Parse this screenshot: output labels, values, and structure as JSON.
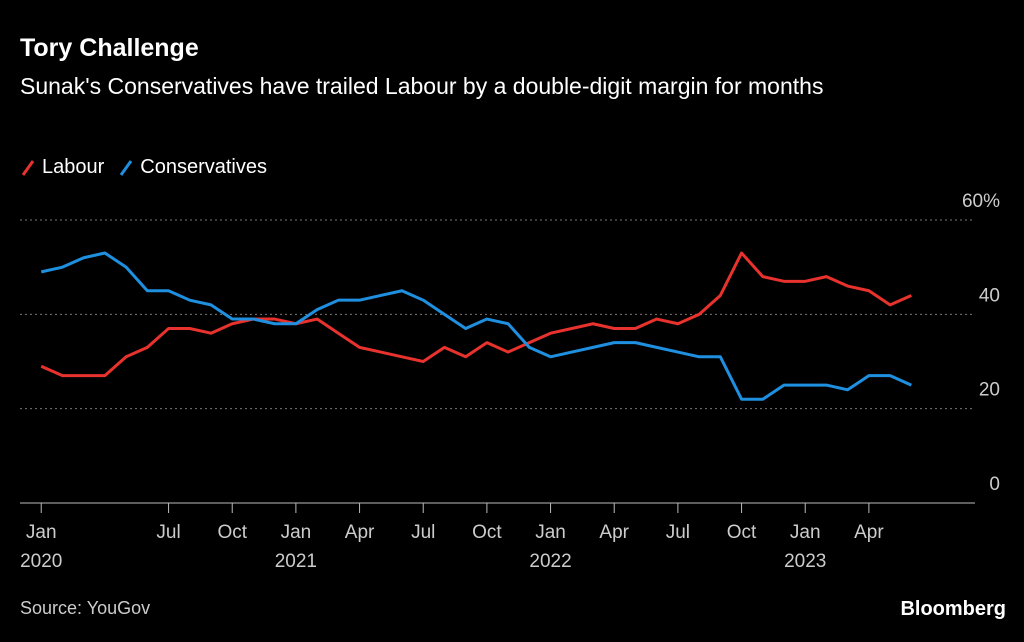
{
  "chart_data": {
    "type": "line",
    "title": "Tory Challenge",
    "subtitle": "Sunak's Conservatives have trailed Labour by a double-digit margin for months",
    "source": "Source: YouGov",
    "brand": "Bloomberg",
    "x": [
      "2020-01",
      "2020-02",
      "2020-03",
      "2020-04",
      "2020-05",
      "2020-06",
      "2020-07",
      "2020-08",
      "2020-09",
      "2020-10",
      "2020-11",
      "2020-12",
      "2021-01",
      "2021-02",
      "2021-03",
      "2021-04",
      "2021-05",
      "2021-06",
      "2021-07",
      "2021-08",
      "2021-09",
      "2021-10",
      "2021-11",
      "2021-12",
      "2022-01",
      "2022-02",
      "2022-03",
      "2022-04",
      "2022-05",
      "2022-06",
      "2022-07",
      "2022-08",
      "2022-09",
      "2022-10",
      "2022-11",
      "2022-12",
      "2023-01",
      "2023-02",
      "2023-03",
      "2023-04",
      "2023-05",
      "2023-06"
    ],
    "series": [
      {
        "name": "Labour",
        "color": "#e8322d",
        "values": [
          29,
          27,
          27,
          27,
          31,
          33,
          37,
          37,
          36,
          38,
          39,
          39,
          38,
          39,
          36,
          33,
          32,
          31,
          30,
          33,
          31,
          34,
          32,
          34,
          36,
          37,
          38,
          37,
          37,
          39,
          38,
          40,
          44,
          53,
          48,
          47,
          47,
          48,
          46,
          45,
          42,
          44
        ]
      },
      {
        "name": "Conservatives",
        "color": "#1f8fe0",
        "values": [
          49,
          50,
          52,
          53,
          50,
          45,
          45,
          43,
          42,
          39,
          39,
          38,
          38,
          41,
          43,
          43,
          44,
          45,
          43,
          40,
          37,
          39,
          38,
          33,
          31,
          32,
          33,
          34,
          34,
          33,
          32,
          31,
          31,
          22,
          22,
          25,
          25,
          25,
          24,
          27,
          27,
          25
        ]
      }
    ],
    "xlim": [
      "2019-12",
      "2023-09"
    ],
    "xticks": [
      {
        "value": "2020-01",
        "label": "Jan",
        "year": "2020"
      },
      {
        "value": "2020-07",
        "label": "Jul"
      },
      {
        "value": "2020-10",
        "label": "Oct"
      },
      {
        "value": "2021-01",
        "label": "Jan",
        "year": "2021"
      },
      {
        "value": "2021-04",
        "label": "Apr"
      },
      {
        "value": "2021-07",
        "label": "Jul"
      },
      {
        "value": "2021-10",
        "label": "Oct"
      },
      {
        "value": "2022-01",
        "label": "Jan",
        "year": "2022"
      },
      {
        "value": "2022-04",
        "label": "Apr"
      },
      {
        "value": "2022-07",
        "label": "Jul"
      },
      {
        "value": "2022-10",
        "label": "Oct"
      },
      {
        "value": "2023-01",
        "label": "Jan",
        "year": "2023"
      },
      {
        "value": "2023-04",
        "label": "Apr"
      }
    ],
    "ylim": [
      0,
      60
    ],
    "yticks": [
      0,
      20,
      40,
      {
        "value": 60,
        "label": "60%"
      }
    ],
    "grid": true
  }
}
